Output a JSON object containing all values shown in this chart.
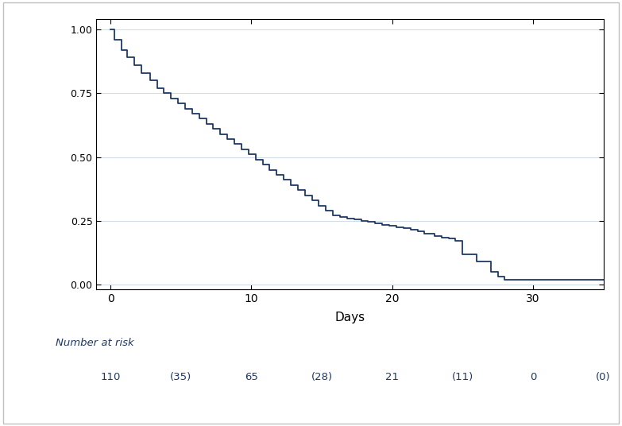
{
  "title": "",
  "xlabel": "Days",
  "ylabel": "",
  "line_color": "#1f3864",
  "line_width": 1.3,
  "background_color": "#ffffff",
  "grid_color": "#d0dce8",
  "xlim": [
    -1,
    35
  ],
  "ylim": [
    -0.02,
    1.04
  ],
  "xticks": [
    0,
    10,
    20,
    30
  ],
  "yticks": [
    0.0,
    0.25,
    0.5,
    0.75,
    1.0
  ],
  "number_at_risk_label": "Number at risk",
  "number_at_risk_days": [
    0,
    5,
    10,
    15,
    20,
    25,
    30,
    35
  ],
  "number_at_risk_values": [
    "110",
    "(35)",
    "65",
    "(28)",
    "21",
    "(11)",
    "0",
    "(0)"
  ],
  "event_times": [
    0.3,
    0.8,
    1.2,
    1.7,
    2.2,
    2.8,
    3.3,
    3.8,
    4.3,
    4.8,
    5.3,
    5.8,
    6.3,
    6.8,
    7.3,
    7.8,
    8.3,
    8.8,
    9.3,
    9.8,
    10.3,
    10.8,
    11.3,
    11.8,
    12.3,
    12.8,
    13.3,
    13.8,
    14.3,
    14.8,
    15.3,
    15.8,
    16.3,
    16.8,
    17.3,
    17.8,
    18.3,
    18.8,
    19.3,
    19.8,
    20.3,
    20.8,
    21.3,
    21.8,
    22.3,
    23.0,
    23.5,
    24.0,
    24.5,
    25.0,
    26.0,
    27.0,
    27.5,
    28.0
  ],
  "survival_after": [
    0.96,
    0.92,
    0.89,
    0.86,
    0.83,
    0.8,
    0.77,
    0.75,
    0.73,
    0.71,
    0.69,
    0.67,
    0.65,
    0.63,
    0.61,
    0.59,
    0.57,
    0.55,
    0.53,
    0.51,
    0.49,
    0.47,
    0.45,
    0.43,
    0.41,
    0.39,
    0.37,
    0.35,
    0.33,
    0.31,
    0.29,
    0.27,
    0.265,
    0.26,
    0.255,
    0.25,
    0.245,
    0.24,
    0.235,
    0.23,
    0.225,
    0.22,
    0.215,
    0.21,
    0.2,
    0.19,
    0.185,
    0.18,
    0.17,
    0.12,
    0.09,
    0.05,
    0.03,
    0.02
  ]
}
